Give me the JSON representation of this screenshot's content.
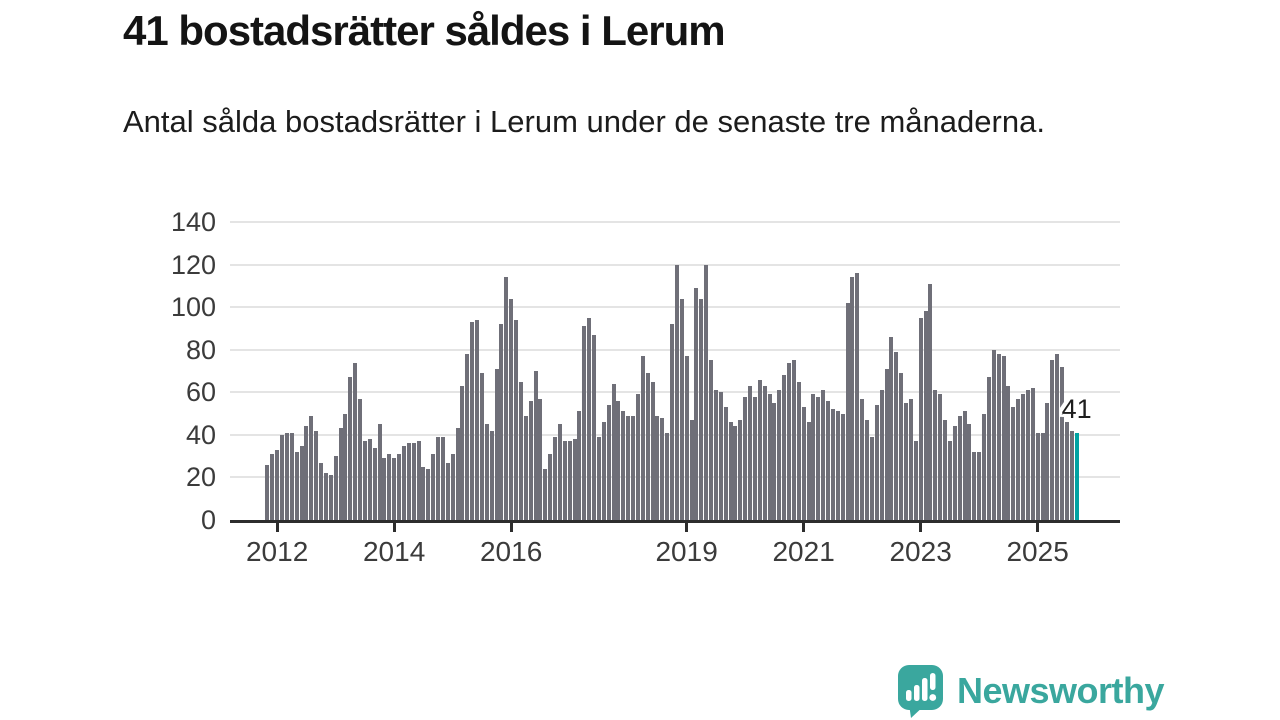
{
  "header": {
    "title": "41 bostadsrätter såldes i Lerum",
    "subtitle": "Antal sålda bostadsrätter i Lerum under de senaste tre månaderna."
  },
  "chart_data": {
    "type": "bar",
    "title": "41 bostadsrätter såldes i Lerum",
    "subtitle": "Antal sålda bostadsrätter i Lerum under de senaste tre månaderna.",
    "x_unit": "month",
    "x_start": "2011-11",
    "x_end": "2025-09",
    "ylim": [
      0,
      140
    ],
    "grid": true,
    "y_ticks": [
      0,
      20,
      40,
      60,
      80,
      100,
      120,
      140
    ],
    "x_ticks": [
      {
        "index": 2,
        "label": "2012"
      },
      {
        "index": 26,
        "label": "2014"
      },
      {
        "index": 50,
        "label": "2016"
      },
      {
        "index": 86,
        "label": "2019"
      },
      {
        "index": 110,
        "label": "2021"
      },
      {
        "index": 134,
        "label": "2023"
      },
      {
        "index": 158,
        "label": "2025"
      }
    ],
    "values": [
      26,
      31,
      33,
      40,
      41,
      41,
      32,
      35,
      44,
      49,
      42,
      27,
      22,
      21,
      30,
      43,
      50,
      67,
      74,
      57,
      37,
      38,
      34,
      45,
      29,
      31,
      29,
      31,
      35,
      36,
      36,
      37,
      25,
      24,
      31,
      39,
      39,
      27,
      31,
      43,
      63,
      78,
      93,
      94,
      69,
      45,
      42,
      71,
      92,
      114,
      104,
      94,
      65,
      49,
      56,
      70,
      57,
      24,
      31,
      39,
      45,
      37,
      37,
      38,
      51,
      91,
      95,
      87,
      39,
      46,
      54,
      64,
      56,
      51,
      49,
      49,
      59,
      77,
      69,
      65,
      49,
      48,
      41,
      92,
      120,
      104,
      77,
      47,
      109,
      104,
      120,
      75,
      61,
      60,
      53,
      46,
      44,
      47,
      58,
      63,
      58,
      66,
      63,
      59,
      55,
      61,
      68,
      74,
      75,
      65,
      53,
      46,
      59,
      58,
      61,
      56,
      52,
      51,
      50,
      102,
      114,
      116,
      57,
      47,
      39,
      54,
      61,
      71,
      86,
      79,
      69,
      55,
      57,
      37,
      95,
      98,
      111,
      61,
      59,
      47,
      37,
      44,
      49,
      51,
      45,
      32,
      32,
      50,
      67,
      80,
      78,
      77,
      63,
      53,
      57,
      59,
      61,
      62,
      41,
      41,
      55,
      75,
      78,
      72,
      46,
      42,
      41
    ],
    "highlight_last_bar": true,
    "last_value_label": "41"
  },
  "colors": {
    "bar": "#6f6f78",
    "highlight": "#00a2a2",
    "grid": "#e4e4e4",
    "axis": "#2d2d2d",
    "tick_text": "#3b3b3b",
    "annotation_text": "#1e1e1e",
    "brand_teal": "#3aa79e"
  },
  "footer": {
    "brand": "Newsworthy"
  }
}
